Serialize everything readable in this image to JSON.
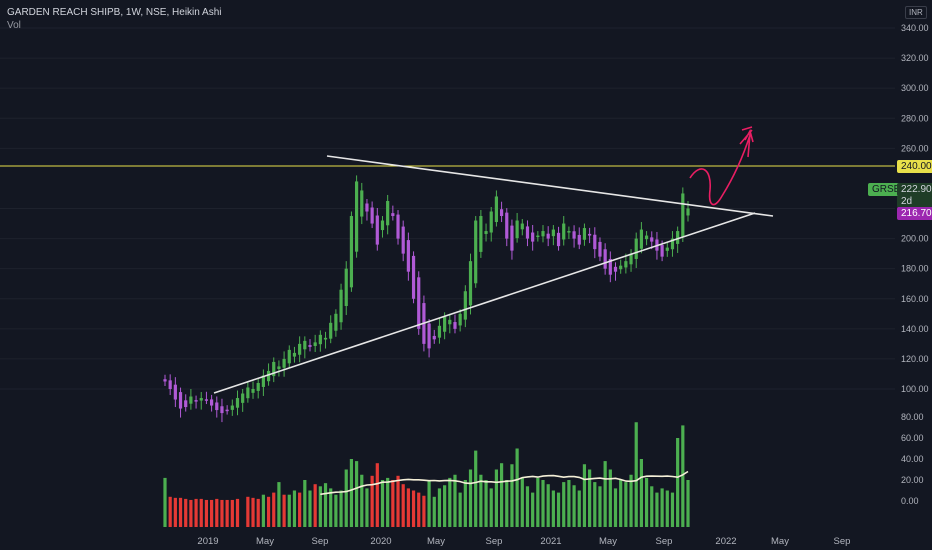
{
  "header": {
    "title": "GARDEN REACH SHIPB, 1W, NSE, Heikin Ashi",
    "volume_label": "Vol",
    "currency": "INR"
  },
  "price_axis": {
    "ticks": [
      "340.00",
      "320.00",
      "300.00",
      "280.00",
      "260.00",
      "220.00",
      "200.00",
      "180.00",
      "160.00",
      "140.00",
      "120.00",
      "100.00"
    ],
    "tick_values": [
      340,
      320,
      300,
      280,
      260,
      220,
      200,
      180,
      160,
      140,
      120,
      100
    ]
  },
  "volume_axis": {
    "ticks": [
      "80.00",
      "60.00",
      "40.00",
      "20.00",
      "0.00"
    ],
    "tick_values": [
      80,
      60,
      40,
      20,
      0
    ]
  },
  "time_axis": {
    "labels": [
      "2019",
      "May",
      "Sep",
      "2020",
      "May",
      "Sep",
      "2021",
      "May",
      "Sep",
      "2022",
      "May",
      "Sep"
    ]
  },
  "tags": {
    "resistance": "240.00",
    "symbol": "GRSE",
    "last_price": "222.90",
    "countdown": "2d 14h",
    "low_price": "216.70"
  },
  "colors": {
    "background": "#131722",
    "up": "#4caf50",
    "down": "#b05ad6",
    "vol_up": "#4caf50",
    "vol_down": "#e53935",
    "resistance": "#e8e04a",
    "drawing": "#e91e63",
    "trendline": "#e6e6e6"
  },
  "chart_data": {
    "type": "candlestick",
    "style": "Heikin Ashi",
    "symbol": "GARDEN REACH SHIPB",
    "interval": "1W",
    "exchange": "NSE",
    "x_labels": [
      "2019",
      "May",
      "Sep",
      "2020",
      "May",
      "Sep",
      "2021",
      "May",
      "Sep",
      "2022",
      "May",
      "Sep"
    ],
    "ylim": [
      90,
      340
    ],
    "resistance_level": 240,
    "last_price": 222.9,
    "series_close": [
      105,
      100,
      93,
      87,
      88,
      95,
      92,
      94,
      93,
      89,
      86,
      84,
      86,
      89,
      94,
      97,
      101,
      100,
      104,
      109,
      112,
      118,
      115,
      120,
      126,
      124,
      130,
      132,
      128,
      131,
      136,
      134,
      144,
      150,
      166,
      180,
      215,
      238,
      232,
      218,
      210,
      196,
      212,
      225,
      215,
      200,
      190,
      178,
      160,
      140,
      130,
      127,
      133,
      142,
      148,
      146,
      140,
      150,
      165,
      185,
      212,
      215,
      205,
      218,
      228,
      215,
      200,
      192,
      212,
      210,
      200,
      198,
      202,
      205,
      200,
      206,
      195,
      210,
      205,
      200,
      196,
      207,
      202,
      193,
      188,
      180,
      176,
      178,
      182,
      185,
      190,
      200,
      206,
      202,
      198,
      192,
      188,
      194,
      200,
      205,
      230,
      220
    ],
    "volume_up": [
      22,
      0,
      0,
      0,
      0,
      0,
      0,
      0,
      0,
      0,
      0,
      0,
      0,
      0,
      0,
      0,
      0,
      0,
      0,
      6,
      0,
      0,
      18,
      0,
      6,
      10,
      0,
      20,
      10,
      0,
      14,
      17,
      12,
      6,
      10,
      30,
      40,
      38,
      25,
      12,
      0,
      0,
      20,
      22,
      0,
      0,
      0,
      0,
      0,
      0,
      0,
      20,
      4,
      12,
      15,
      22,
      25,
      8,
      20,
      30,
      48,
      25,
      20,
      12,
      30,
      36,
      20,
      35,
      50,
      22,
      14,
      8,
      22,
      20,
      16,
      10,
      8,
      18,
      20,
      15,
      10,
      35,
      30,
      18,
      14,
      38,
      30,
      12,
      20,
      18,
      25,
      75,
      40,
      22,
      14,
      8,
      12,
      10,
      8,
      60,
      72,
      20
    ],
    "volume_down": [
      0,
      4,
      3,
      3,
      2,
      1,
      2,
      2,
      1,
      1,
      2,
      1,
      1,
      1,
      2,
      0,
      4,
      3,
      2,
      0,
      4,
      8,
      0,
      6,
      0,
      0,
      8,
      0,
      0,
      16,
      0,
      0,
      0,
      0,
      0,
      0,
      0,
      0,
      0,
      0,
      24,
      36,
      0,
      0,
      20,
      24,
      16,
      12,
      10,
      8,
      5,
      0,
      0,
      0,
      0,
      0,
      0,
      0,
      0,
      0,
      0,
      0,
      0,
      0,
      0,
      0,
      0,
      0,
      0,
      0,
      0,
      0,
      0,
      0,
      0,
      0,
      0,
      0,
      0,
      0,
      0,
      0,
      0,
      0,
      0,
      0,
      0,
      0,
      0,
      0,
      0,
      0,
      0,
      0,
      0,
      0,
      0,
      0,
      0,
      0,
      0,
      0
    ],
    "volume_ma": [
      0,
      0,
      0,
      0,
      0,
      0,
      0,
      0,
      0,
      0,
      0,
      0,
      0,
      0,
      0,
      0,
      0,
      0,
      0,
      0,
      0,
      0,
      0,
      0,
      0,
      0,
      0,
      0,
      0,
      0,
      0,
      0,
      0,
      0,
      0,
      0,
      0,
      0,
      0,
      0,
      0,
      0,
      0,
      0,
      0,
      0,
      0,
      0,
      0,
      0,
      0,
      0,
      0,
      0,
      0,
      0,
      0,
      0,
      0,
      0,
      0,
      0,
      0,
      0,
      0,
      0,
      0,
      0,
      0,
      0,
      0,
      0,
      0,
      0,
      0,
      0,
      0,
      0,
      0,
      0,
      0,
      0,
      0,
      0,
      0,
      0,
      0,
      0,
      0,
      0,
      0,
      0,
      0,
      0,
      0,
      0,
      0,
      0,
      0,
      0,
      0,
      0
    ],
    "vol_ylim": [
      0,
      80
    ]
  }
}
